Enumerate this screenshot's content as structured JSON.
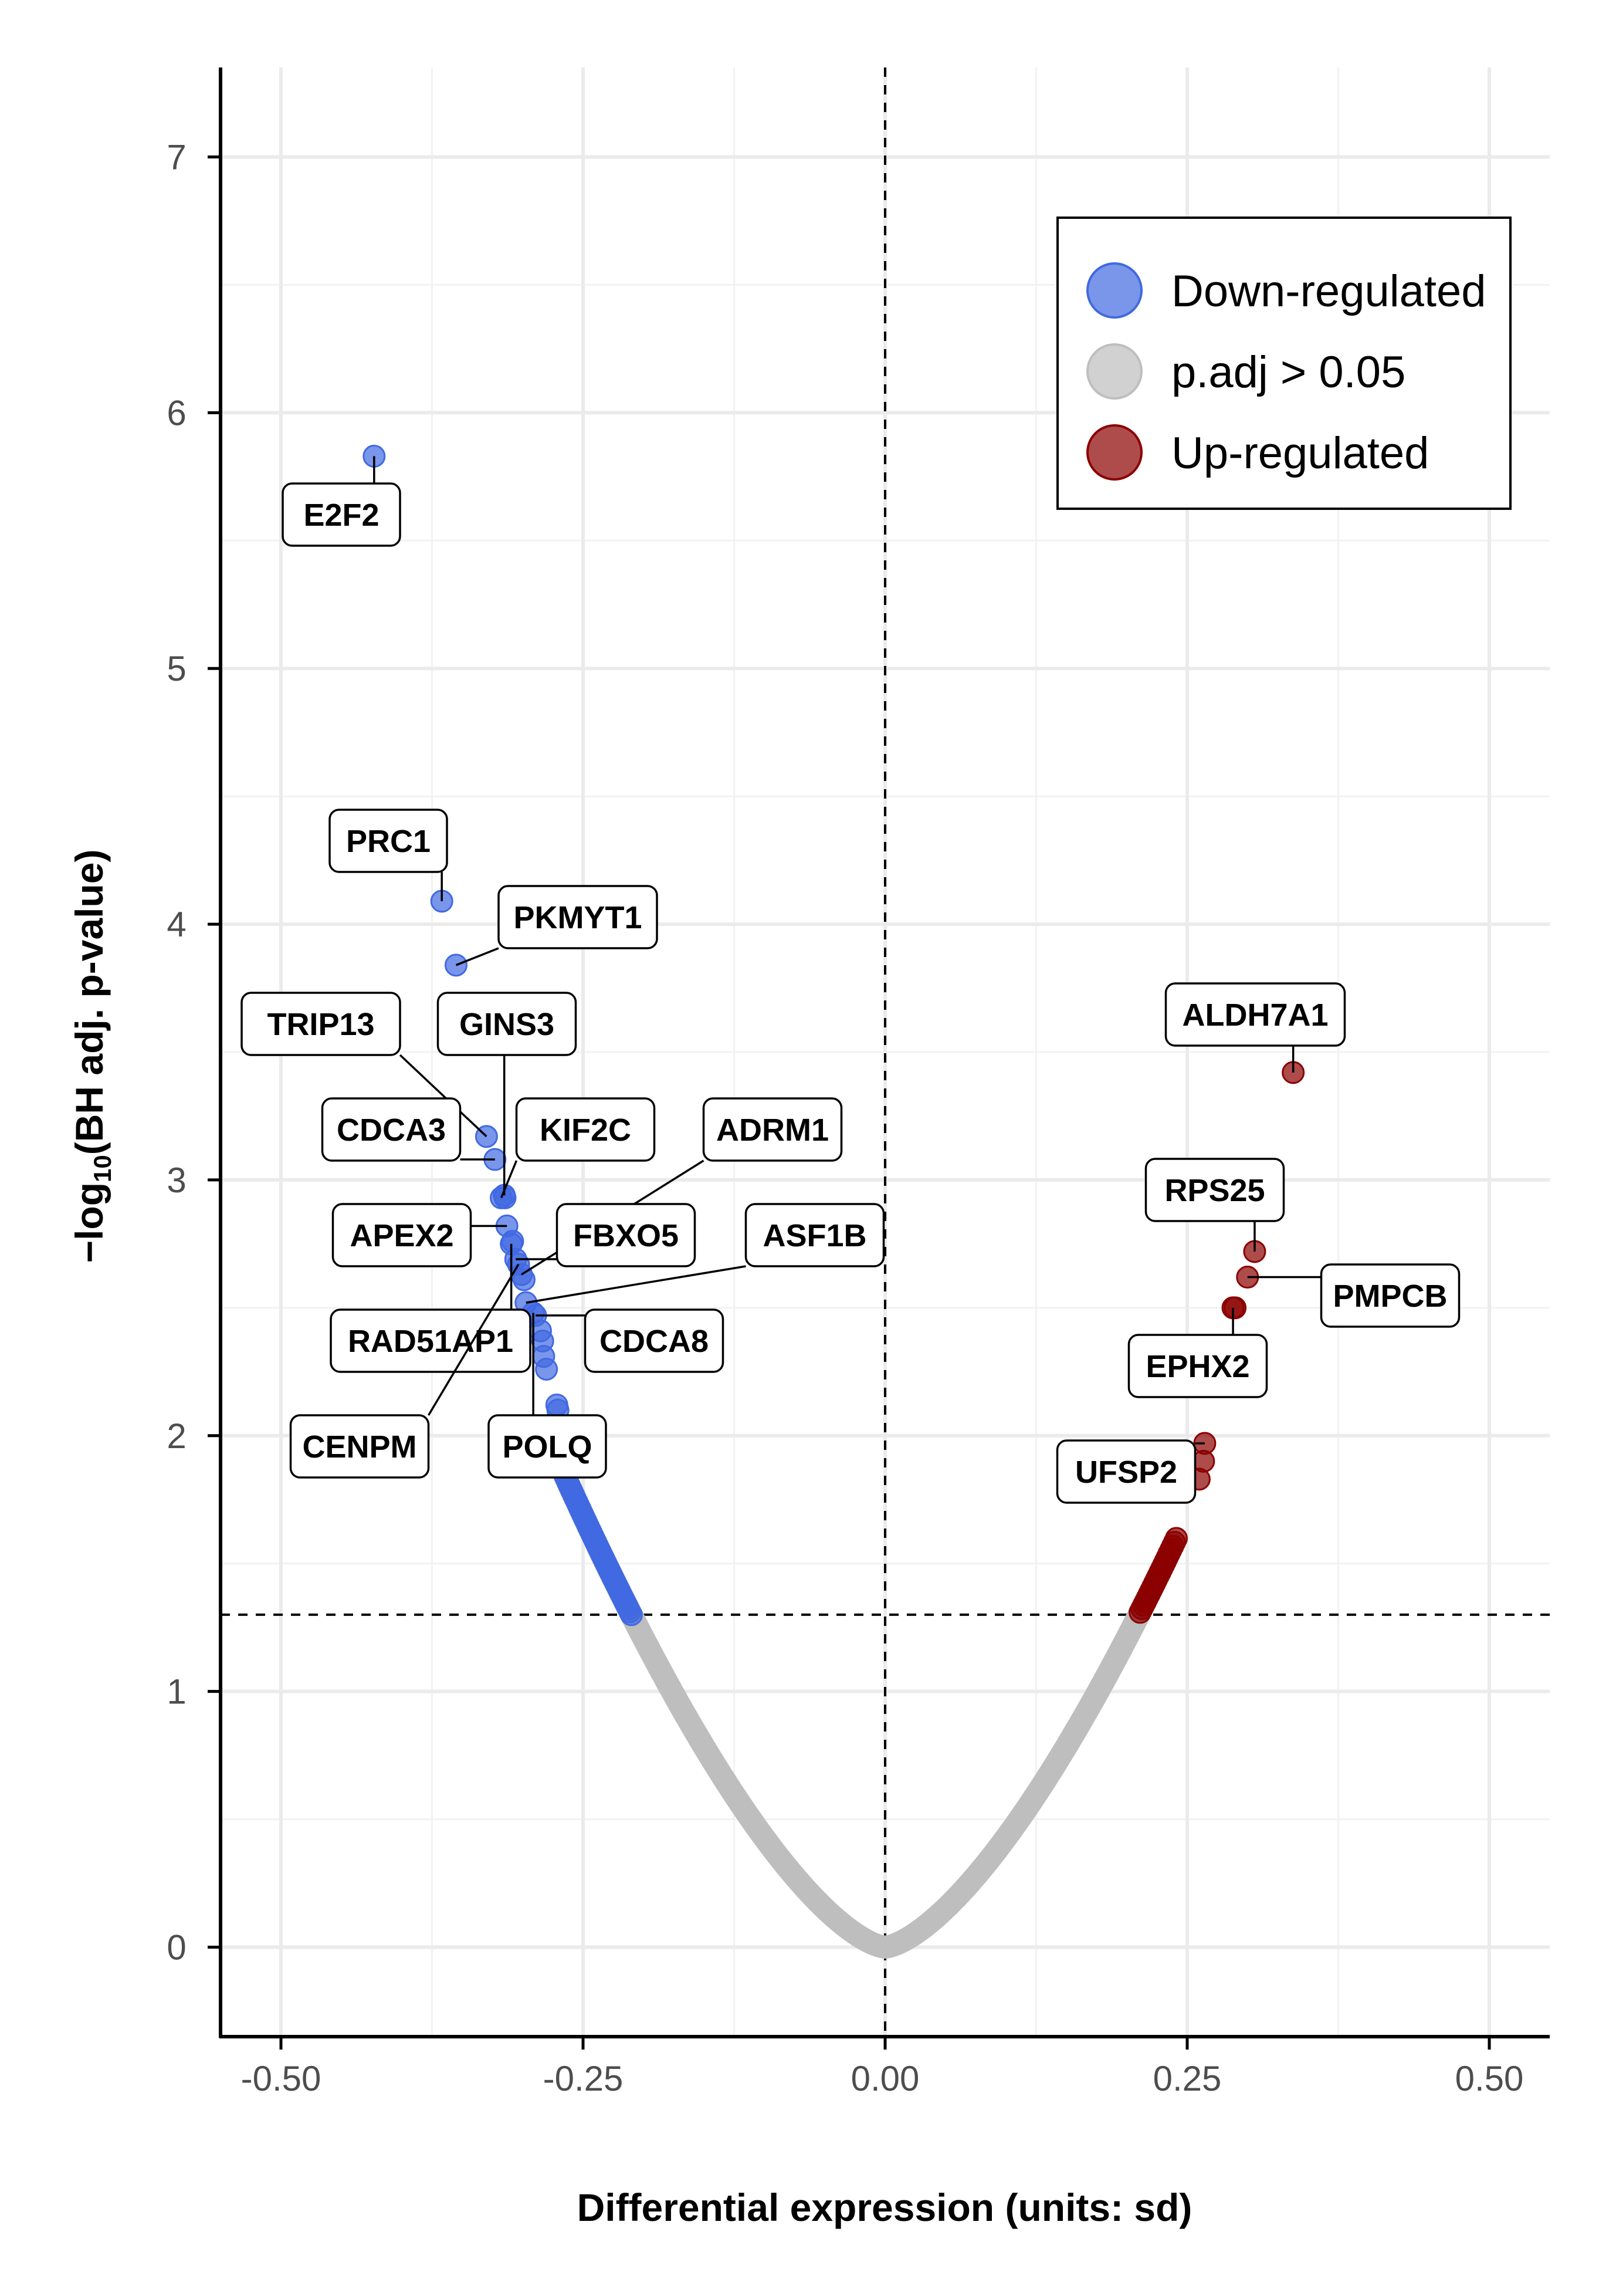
{
  "chart_data": {
    "type": "scatter",
    "title": "",
    "xlabel": "Differential expression (units: sd)",
    "ylabel_prefix": "−log",
    "ylabel_subscript": "10",
    "ylabel_suffix": "(BH adj. p-value)",
    "xlim": [
      -0.55,
      0.55
    ],
    "ylim": [
      -0.35,
      7.35
    ],
    "x_ticks": [
      -0.5,
      -0.25,
      0.0,
      0.25,
      0.5
    ],
    "x_tick_labels": [
      "-0.50",
      "-0.25",
      "0.00",
      "0.25",
      "0.50"
    ],
    "y_ticks": [
      0,
      1,
      2,
      3,
      4,
      5,
      6,
      7
    ],
    "y_tick_labels": [
      "0",
      "1",
      "2",
      "3",
      "4",
      "5",
      "6",
      "7"
    ],
    "grid": true,
    "threshold_y": 1.3,
    "threshold_x": 0.0,
    "legend_position": "top-right",
    "colors": {
      "down": "#4169e1",
      "ns": "#bebebe",
      "up": "#8b0000"
    },
    "series": [
      {
        "name": "Down-regulated",
        "key": "down"
      },
      {
        "name": "p.adj > 0.05",
        "key": "ns"
      },
      {
        "name": "Up-regulated",
        "key": "up"
      }
    ],
    "labeled_genes": [
      {
        "gene": "E2F2",
        "x": -0.4229,
        "y": 5.83,
        "group": "down"
      },
      {
        "gene": "PRC1",
        "x": -0.3669,
        "y": 4.09,
        "group": "down"
      },
      {
        "gene": "PKMYT1",
        "x": -0.3551,
        "y": 3.84,
        "group": "down"
      },
      {
        "gene": "TRIP13",
        "x": -0.3299,
        "y": 3.17,
        "group": "down"
      },
      {
        "gene": "GINS3",
        "x": -0.3152,
        "y": 2.94,
        "group": "down"
      },
      {
        "gene": "CDCA3",
        "x": -0.3229,
        "y": 3.08,
        "group": "down"
      },
      {
        "gene": "KIF2C",
        "x": -0.3177,
        "y": 2.93,
        "group": "down"
      },
      {
        "gene": "ADRM1",
        "x": -0.301,
        "y": 2.63,
        "group": "down"
      },
      {
        "gene": "APEX2",
        "x": -0.313,
        "y": 2.82,
        "group": "down"
      },
      {
        "gene": "FBXO5",
        "x": -0.3057,
        "y": 2.69,
        "group": "down"
      },
      {
        "gene": "ASF1B",
        "x": -0.2972,
        "y": 2.52,
        "group": "down"
      },
      {
        "gene": "RAD51AP1",
        "x": -0.3094,
        "y": 2.75,
        "group": "down"
      },
      {
        "gene": "CDCA8",
        "x": -0.2893,
        "y": 2.47,
        "group": "down"
      },
      {
        "gene": "CENPM",
        "x": -0.3034,
        "y": 2.67,
        "group": "down"
      },
      {
        "gene": "POLQ",
        "x": -0.2912,
        "y": 2.48,
        "group": "down"
      },
      {
        "gene": "ALDH7A1",
        "x": 0.3377,
        "y": 3.42,
        "group": "up"
      },
      {
        "gene": "RPS25",
        "x": 0.3058,
        "y": 2.72,
        "group": "up"
      },
      {
        "gene": "PMPCB",
        "x": 0.2999,
        "y": 2.62,
        "group": "up"
      },
      {
        "gene": "EPHX2",
        "x": 0.2879,
        "y": 2.5,
        "group": "up"
      },
      {
        "gene": "UFSP2",
        "x": 0.2645,
        "y": 1.97,
        "group": "up"
      }
    ],
    "extra_points": [
      {
        "x": -0.3146,
        "y": 2.93,
        "group": "down"
      },
      {
        "x": -0.3083,
        "y": 2.76,
        "group": "down"
      },
      {
        "x": -0.2988,
        "y": 2.61,
        "group": "down"
      },
      {
        "x": -0.2852,
        "y": 2.41,
        "group": "down"
      },
      {
        "x": -0.2834,
        "y": 2.37,
        "group": "down"
      },
      {
        "x": -0.2826,
        "y": 2.31,
        "group": "down"
      },
      {
        "x": -0.2803,
        "y": 2.26,
        "group": "down"
      },
      {
        "x": -0.2717,
        "y": 2.12,
        "group": "down"
      },
      {
        "x": -0.2708,
        "y": 2.1,
        "group": "down"
      },
      {
        "x": 0.2896,
        "y": 2.5,
        "group": "up"
      },
      {
        "x": 0.2635,
        "y": 1.9,
        "group": "up"
      },
      {
        "x": 0.2599,
        "y": 1.83,
        "group": "up"
      }
    ]
  }
}
